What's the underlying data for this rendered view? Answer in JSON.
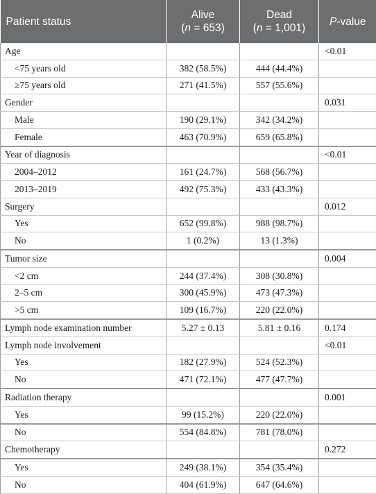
{
  "header": {
    "col1": "Patient status",
    "col2_title": "Alive",
    "col2_n": "653",
    "col3_title": "Dead",
    "col3_n": "1,001",
    "col4_p": "P",
    "col4_rest": "-value",
    "n_letter": "n"
  },
  "rows": [
    {
      "label": "Age",
      "alive": "",
      "dead": "",
      "p": "<0.01",
      "sub": false
    },
    {
      "label": "<75 years old",
      "alive": "382 (58.5%)",
      "dead": "444 (44.4%)",
      "p": "",
      "sub": true
    },
    {
      "label": "≥75 years old",
      "alive": "271 (41.5%)",
      "dead": "557 (55.6%)",
      "p": "",
      "sub": true
    },
    {
      "label": "Gender",
      "alive": "",
      "dead": "",
      "p": "0.031",
      "sub": false
    },
    {
      "label": "Male",
      "alive": "190 (29.1%)",
      "dead": "342 (34.2%)",
      "p": "",
      "sub": true
    },
    {
      "label": "Female",
      "alive": "463 (70.9%)",
      "dead": "659 (65.8%)",
      "p": "",
      "sub": true
    },
    {
      "label": "Year of diagnosis",
      "alive": "",
      "dead": "",
      "p": "<0.01",
      "sub": false
    },
    {
      "label": "2004–2012",
      "alive": "161 (24.7%)",
      "dead": "568 (56.7%)",
      "p": "",
      "sub": true
    },
    {
      "label": "2013–2019",
      "alive": "492 (75.3%)",
      "dead": "433 (43.3%)",
      "p": "",
      "sub": true
    },
    {
      "label": "Surgery",
      "alive": "",
      "dead": "",
      "p": "0.012",
      "sub": false
    },
    {
      "label": "Yes",
      "alive": "652 (99.8%)",
      "dead": "988 (98.7%)",
      "p": "",
      "sub": true
    },
    {
      "label": "No",
      "alive": "1 (0.2%)",
      "dead": "13 (1.3%)",
      "p": "",
      "sub": true
    },
    {
      "label": "Tumor size",
      "alive": "",
      "dead": "",
      "p": "0.004",
      "sub": false
    },
    {
      "label": "<2 cm",
      "alive": "244 (37.4%)",
      "dead": "308 (30.8%)",
      "p": "",
      "sub": true
    },
    {
      "label": "2–5 cm",
      "alive": "300 (45.9%)",
      "dead": "473 (47.3%)",
      "p": "",
      "sub": true
    },
    {
      "label": ">5 cm",
      "alive": "109 (16.7%)",
      "dead": "220 (22.0%)",
      "p": "",
      "sub": true
    },
    {
      "label": "Lymph node examination number",
      "alive": "5.27 ± 0.13",
      "dead": "5.81 ± 0.16",
      "p": "0.174",
      "sub": false
    },
    {
      "label": "Lymph node involvement",
      "alive": "",
      "dead": "",
      "p": "<0.01",
      "sub": false
    },
    {
      "label": "Yes",
      "alive": "182 (27.9%)",
      "dead": "524 (52.3%)",
      "p": "",
      "sub": true
    },
    {
      "label": "No",
      "alive": "471 (72.1%)",
      "dead": "477 (47.7%)",
      "p": "",
      "sub": true
    },
    {
      "label": "Radiation therapy",
      "alive": "",
      "dead": "",
      "p": "0.001",
      "sub": false
    },
    {
      "label": "Yes",
      "alive": "99 (15.2%)",
      "dead": "220 (22.0%)",
      "p": "",
      "sub": true
    },
    {
      "label": "No",
      "alive": "554 (84.8%)",
      "dead": "781 (78.0%)",
      "p": "",
      "sub": true
    },
    {
      "label": "Chemotherapy",
      "alive": "",
      "dead": "",
      "p": "0.272",
      "sub": false
    },
    {
      "label": "Yes",
      "alive": "249 (38.1%)",
      "dead": "354 (35.4%)",
      "p": "",
      "sub": true
    },
    {
      "label": "No",
      "alive": "404 (61.9%)",
      "dead": "647 (64.6%)",
      "p": "",
      "sub": true
    }
  ]
}
